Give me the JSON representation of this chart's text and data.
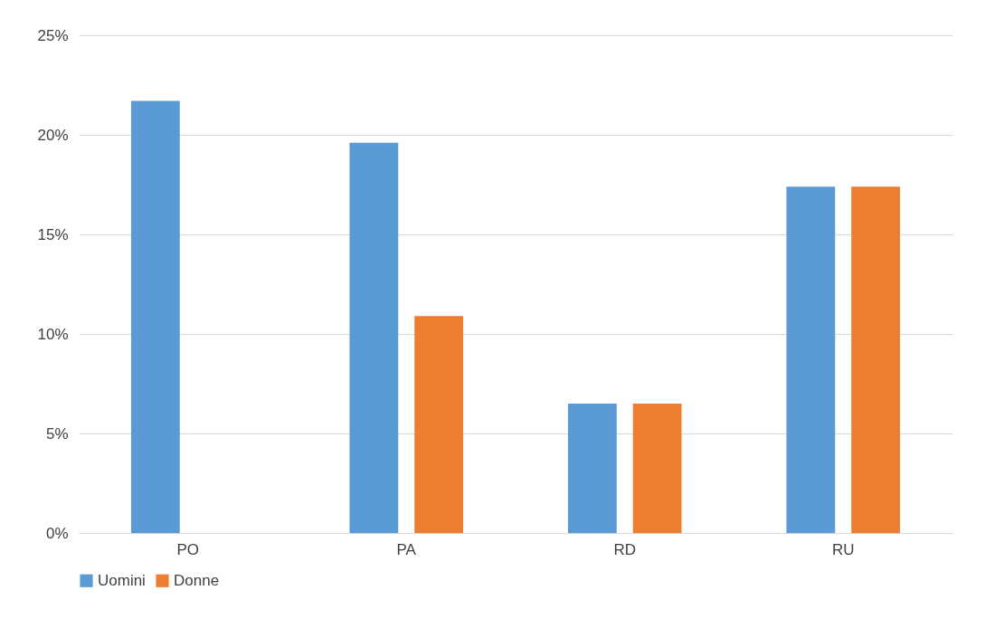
{
  "chart_data": {
    "type": "bar",
    "categories": [
      "PO",
      "PA",
      "RD",
      "RU"
    ],
    "series": [
      {
        "name": "Uomini",
        "color": "#5b9bd5",
        "values": [
          21.7,
          19.6,
          6.5,
          17.4
        ]
      },
      {
        "name": "Donne",
        "color": "#ed7d31",
        "values": [
          0,
          10.9,
          6.5,
          17.4
        ]
      }
    ],
    "ylim": [
      0,
      25
    ],
    "yticks": [
      {
        "value": 0,
        "label": "0%"
      },
      {
        "value": 5,
        "label": "5%"
      },
      {
        "value": 10,
        "label": "10%"
      },
      {
        "value": 15,
        "label": "15%"
      },
      {
        "value": 20,
        "label": "20%"
      },
      {
        "value": 25,
        "label": "25%"
      }
    ],
    "grid": "y",
    "legend": "bottom"
  }
}
